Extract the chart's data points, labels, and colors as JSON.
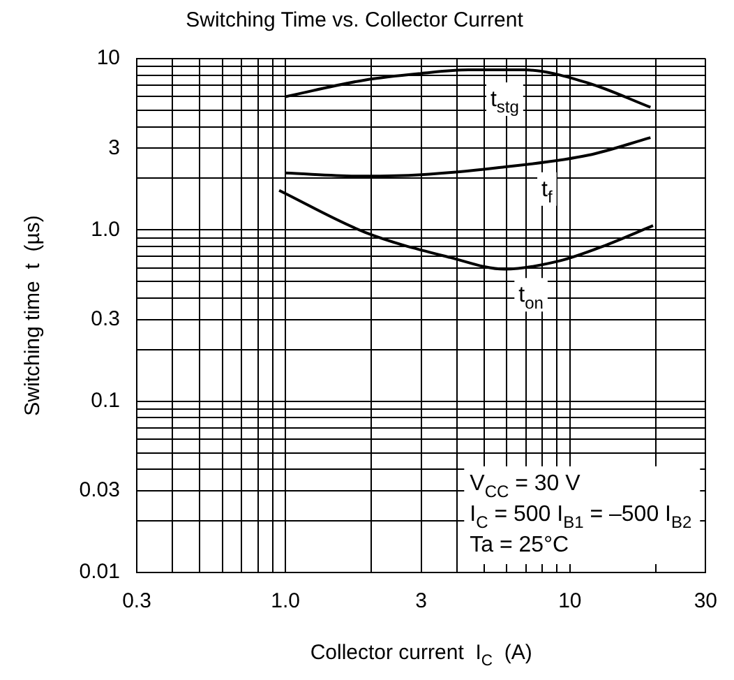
{
  "chart_data": {
    "type": "line",
    "title": "Switching Time vs. Collector Current",
    "xlabel": "Collector current  I$_{C}$  (A)",
    "ylabel": "Switching time  t  (µs)",
    "log": "xy",
    "grid": true,
    "legend": false,
    "marker": "none",
    "line_style": "solid",
    "xlim": [
      0.3,
      30
    ],
    "ylim": [
      0.01,
      10
    ],
    "xticks": [
      {
        "value": 0.3,
        "label": "0.3"
      },
      {
        "value": 0.4,
        "label": null
      },
      {
        "value": 0.5,
        "label": null
      },
      {
        "value": 0.6,
        "label": null
      },
      {
        "value": 0.7,
        "label": null
      },
      {
        "value": 0.8,
        "label": null
      },
      {
        "value": 0.9,
        "label": null
      },
      {
        "value": 1,
        "label": "1.0"
      },
      {
        "value": 2,
        "label": null
      },
      {
        "value": 3,
        "label": "3"
      },
      {
        "value": 4,
        "label": null
      },
      {
        "value": 5,
        "label": null
      },
      {
        "value": 6,
        "label": null
      },
      {
        "value": 7,
        "label": null
      },
      {
        "value": 8,
        "label": null
      },
      {
        "value": 9,
        "label": null
      },
      {
        "value": 10,
        "label": "10"
      },
      {
        "value": 20,
        "label": null
      },
      {
        "value": 30,
        "label": "30"
      }
    ],
    "yticks": [
      {
        "value": 0.01,
        "label": "0.01"
      },
      {
        "value": 0.02,
        "label": null
      },
      {
        "value": 0.03,
        "label": "0.03"
      },
      {
        "value": 0.04,
        "label": null
      },
      {
        "value": 0.05,
        "label": null
      },
      {
        "value": 0.06,
        "label": null
      },
      {
        "value": 0.07,
        "label": null
      },
      {
        "value": 0.08,
        "label": null
      },
      {
        "value": 0.09,
        "label": null
      },
      {
        "value": 0.1,
        "label": "0.1"
      },
      {
        "value": 0.2,
        "label": null
      },
      {
        "value": 0.3,
        "label": "0.3"
      },
      {
        "value": 0.4,
        "label": null
      },
      {
        "value": 0.5,
        "label": null
      },
      {
        "value": 0.6,
        "label": null
      },
      {
        "value": 0.7,
        "label": null
      },
      {
        "value": 0.8,
        "label": null
      },
      {
        "value": 0.9,
        "label": null
      },
      {
        "value": 1,
        "label": "1.0"
      },
      {
        "value": 2,
        "label": null
      },
      {
        "value": 3,
        "label": "3"
      },
      {
        "value": 4,
        "label": null
      },
      {
        "value": 5,
        "label": null
      },
      {
        "value": 6,
        "label": null
      },
      {
        "value": 7,
        "label": null
      },
      {
        "value": 8,
        "label": null
      },
      {
        "value": 9,
        "label": null
      },
      {
        "value": 10,
        "label": "10"
      }
    ],
    "series": [
      {
        "color": "#000000",
        "x": [
          1,
          1.9,
          3,
          4.4,
          6.9,
          11.6,
          19.2
        ],
        "values": [
          6.0,
          7.5,
          8.2,
          8.6,
          8.6,
          7.2,
          5.2
        ]
      },
      {
        "color": "#000000",
        "x": [
          1,
          1.9,
          3,
          5.5,
          11.6,
          19.2
        ],
        "values": [
          2.15,
          2.06,
          2.1,
          2.3,
          2.73,
          3.46
        ]
      },
      {
        "color": "#000000",
        "x": [
          0.95,
          1.9,
          3.8,
          5.9,
          9.2,
          13,
          19.6
        ],
        "values": [
          1.7,
          0.97,
          0.69,
          0.59,
          0.66,
          0.8,
          1.06
        ]
      }
    ],
    "annotations": [
      {
        "text": "t$_{stg}$",
        "x": 5.9,
        "y": 5.7
      },
      {
        "text": "t$_{f}$",
        "x": 8.3,
        "y": 1.7
      },
      {
        "text": "t$_{on}$",
        "x": 7.3,
        "y": 0.41
      },
      "V$_{CC}$ = 30 V",
      "I$_{C}$ = 500 I$_{B1}$ = –500 I$_{B2}$",
      "Ta = 25°C"
    ]
  }
}
